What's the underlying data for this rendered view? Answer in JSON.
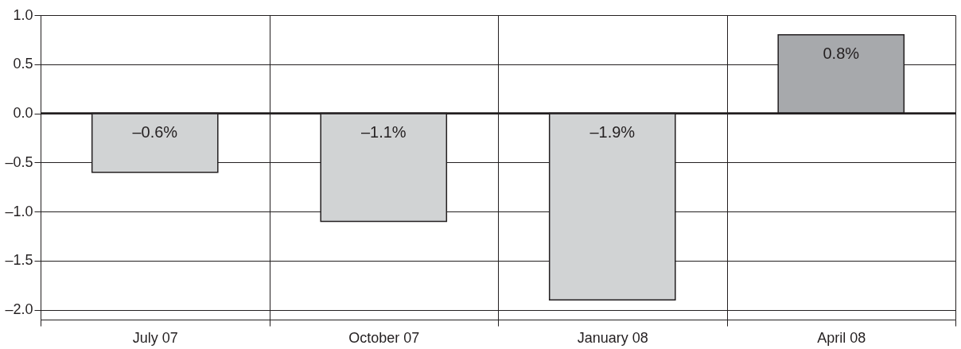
{
  "chart_data": {
    "type": "bar",
    "categories": [
      "July 07",
      "October 07",
      "January 08",
      "April 08"
    ],
    "values": [
      -0.6,
      -1.1,
      -1.9,
      0.8
    ],
    "colors": [
      "#d1d3d4",
      "#d1d3d4",
      "#d1d3d4",
      "#a7a9ac"
    ],
    "value_labels": [
      "–0.6%",
      "–1.1%",
      "–1.9%",
      "0.8%"
    ],
    "ylim": [
      -2.1,
      1.0
    ],
    "yticks": [
      {
        "value": 1.0,
        "label": "1.0"
      },
      {
        "value": 0.5,
        "label": "0.5"
      },
      {
        "value": 0.0,
        "label": "0.0"
      },
      {
        "value": -0.5,
        "label": "–0.5"
      },
      {
        "value": -1.0,
        "label": "–1.0"
      },
      {
        "value": -1.5,
        "label": "–1.5"
      },
      {
        "value": -2.0,
        "label": "–2.0"
      }
    ],
    "ref_lines": [
      {
        "axis": "y",
        "value": 0,
        "label": null
      }
    ],
    "grid": true
  }
}
